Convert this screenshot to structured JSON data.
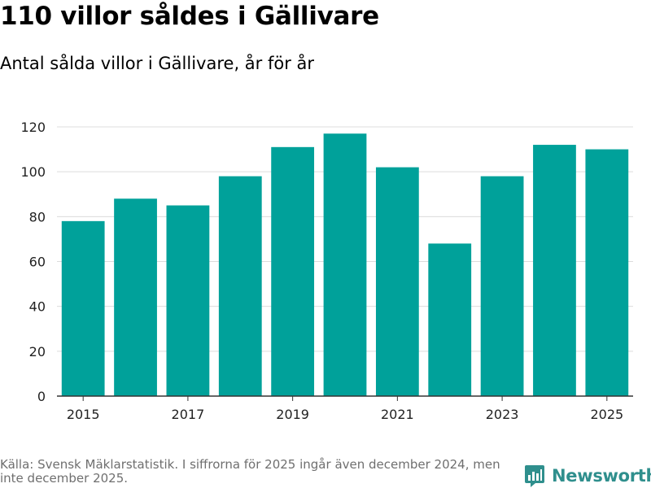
{
  "header": {
    "title": "110 villor såldes i Gällivare",
    "subtitle": "Antal sålda villor i Gällivare, år för år"
  },
  "chart_data": {
    "type": "bar",
    "categories": [
      "2015",
      "2016",
      "2017",
      "2018",
      "2019",
      "2020",
      "2021",
      "2022",
      "2023",
      "2024",
      "2025"
    ],
    "values": [
      78,
      88,
      85,
      98,
      111,
      117,
      102,
      68,
      98,
      112,
      110
    ],
    "x_tick_labels": [
      "2015",
      "2017",
      "2019",
      "2021",
      "2023",
      "2025"
    ],
    "y_ticks": [
      0,
      20,
      40,
      60,
      80,
      100,
      120
    ],
    "ylim": [
      0,
      120
    ],
    "grid": true,
    "bar_color": "#00a19a",
    "xlabel": "",
    "ylabel": ""
  },
  "footer": {
    "source": "Källa: Svensk Mäklarstatistik. I siffrorna för 2025 ingår även december 2024, men inte december 2025.",
    "brand": "Newsworthy",
    "brand_color": "#2f8f8d"
  }
}
